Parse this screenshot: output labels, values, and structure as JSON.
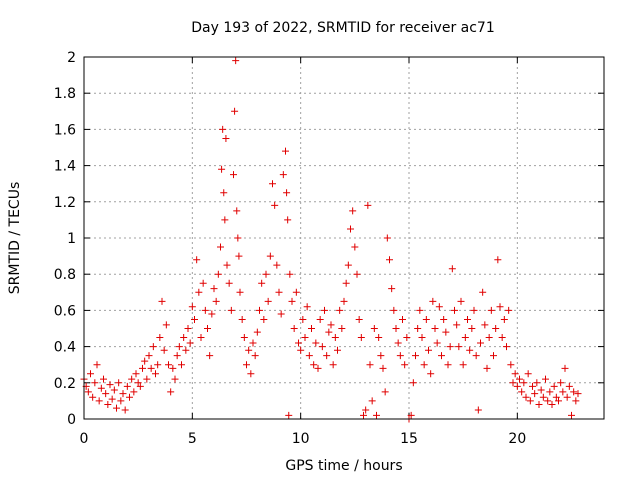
{
  "chart_data": {
    "type": "scatter",
    "title": "Day 193 of 2022, SRMTID for receiver ac71",
    "xlabel": "GPS time / hours",
    "ylabel": "SRMTID / TECUs",
    "xlim": [
      0,
      24
    ],
    "ylim": [
      0,
      2
    ],
    "xticks": [
      0,
      5,
      10,
      15,
      20
    ],
    "xtick_labels": [
      "0",
      "5",
      "10",
      "15",
      "20"
    ],
    "yticks": [
      0,
      0.2,
      0.4,
      0.6,
      0.8,
      1,
      1.2,
      1.4,
      1.6,
      1.8,
      2
    ],
    "ytick_labels": [
      "0",
      "0.2",
      "0.4",
      "0.6",
      "0.8",
      "1",
      "1.2",
      "1.4",
      "1.6",
      "1.8",
      "2"
    ],
    "grid": true,
    "marker": "+",
    "color": "#e00000",
    "series": [
      {
        "name": "SRMTID",
        "points": [
          [
            0.0,
            0.22
          ],
          [
            0.1,
            0.18
          ],
          [
            0.2,
            0.15
          ],
          [
            0.3,
            0.25
          ],
          [
            0.4,
            0.12
          ],
          [
            0.5,
            0.2
          ],
          [
            0.6,
            0.3
          ],
          [
            0.7,
            0.1
          ],
          [
            0.8,
            0.17
          ],
          [
            0.9,
            0.22
          ],
          [
            1.0,
            0.14
          ],
          [
            1.1,
            0.08
          ],
          [
            1.2,
            0.19
          ],
          [
            1.3,
            0.11
          ],
          [
            1.4,
            0.16
          ],
          [
            1.5,
            0.06
          ],
          [
            1.6,
            0.2
          ],
          [
            1.7,
            0.1
          ],
          [
            1.8,
            0.14
          ],
          [
            1.9,
            0.05
          ],
          [
            2.0,
            0.18
          ],
          [
            2.1,
            0.12
          ],
          [
            2.2,
            0.22
          ],
          [
            2.3,
            0.15
          ],
          [
            2.4,
            0.25
          ],
          [
            2.5,
            0.2
          ],
          [
            2.6,
            0.18
          ],
          [
            2.7,
            0.28
          ],
          [
            2.8,
            0.32
          ],
          [
            2.9,
            0.22
          ],
          [
            3.0,
            0.35
          ],
          [
            3.1,
            0.28
          ],
          [
            3.2,
            0.4
          ],
          [
            3.3,
            0.25
          ],
          [
            3.4,
            0.3
          ],
          [
            3.5,
            0.45
          ],
          [
            3.6,
            0.65
          ],
          [
            3.7,
            0.38
          ],
          [
            3.8,
            0.52
          ],
          [
            3.9,
            0.3
          ],
          [
            4.0,
            0.15
          ],
          [
            4.1,
            0.28
          ],
          [
            4.2,
            0.22
          ],
          [
            4.3,
            0.35
          ],
          [
            4.4,
            0.4
          ],
          [
            4.5,
            0.3
          ],
          [
            4.6,
            0.45
          ],
          [
            4.7,
            0.38
          ],
          [
            4.8,
            0.5
          ],
          [
            4.9,
            0.42
          ],
          [
            5.0,
            0.62
          ],
          [
            5.1,
            0.55
          ],
          [
            5.2,
            0.88
          ],
          [
            5.3,
            0.7
          ],
          [
            5.4,
            0.45
          ],
          [
            5.5,
            0.75
          ],
          [
            5.6,
            0.6
          ],
          [
            5.7,
            0.5
          ],
          [
            5.8,
            0.35
          ],
          [
            5.9,
            0.58
          ],
          [
            6.0,
            0.72
          ],
          [
            6.1,
            0.65
          ],
          [
            6.2,
            0.8
          ],
          [
            6.3,
            0.95
          ],
          [
            6.35,
            1.38
          ],
          [
            6.4,
            1.6
          ],
          [
            6.45,
            1.25
          ],
          [
            6.5,
            1.1
          ],
          [
            6.55,
            1.55
          ],
          [
            6.6,
            0.85
          ],
          [
            6.7,
            0.75
          ],
          [
            6.8,
            0.6
          ],
          [
            6.9,
            1.35
          ],
          [
            6.95,
            1.7
          ],
          [
            7.0,
            1.98
          ],
          [
            7.05,
            1.15
          ],
          [
            7.1,
            1.0
          ],
          [
            7.15,
            0.9
          ],
          [
            7.2,
            0.7
          ],
          [
            7.3,
            0.55
          ],
          [
            7.4,
            0.45
          ],
          [
            7.5,
            0.3
          ],
          [
            7.6,
            0.38
          ],
          [
            7.7,
            0.25
          ],
          [
            7.8,
            0.42
          ],
          [
            7.9,
            0.35
          ],
          [
            8.0,
            0.48
          ],
          [
            8.1,
            0.6
          ],
          [
            8.2,
            0.75
          ],
          [
            8.3,
            0.55
          ],
          [
            8.4,
            0.8
          ],
          [
            8.5,
            0.65
          ],
          [
            8.6,
            0.9
          ],
          [
            8.7,
            1.3
          ],
          [
            8.8,
            1.18
          ],
          [
            8.9,
            0.85
          ],
          [
            9.0,
            0.7
          ],
          [
            9.1,
            0.58
          ],
          [
            9.2,
            1.35
          ],
          [
            9.3,
            1.48
          ],
          [
            9.35,
            1.25
          ],
          [
            9.4,
            1.1
          ],
          [
            9.45,
            0.02
          ],
          [
            9.5,
            0.8
          ],
          [
            9.6,
            0.65
          ],
          [
            9.7,
            0.5
          ],
          [
            9.8,
            0.7
          ],
          [
            9.9,
            0.42
          ],
          [
            10.0,
            0.38
          ],
          [
            10.1,
            0.55
          ],
          [
            10.2,
            0.45
          ],
          [
            10.3,
            0.62
          ],
          [
            10.4,
            0.35
          ],
          [
            10.5,
            0.5
          ],
          [
            10.6,
            0.3
          ],
          [
            10.7,
            0.42
          ],
          [
            10.8,
            0.28
          ],
          [
            10.9,
            0.55
          ],
          [
            11.0,
            0.4
          ],
          [
            11.1,
            0.6
          ],
          [
            11.2,
            0.35
          ],
          [
            11.3,
            0.48
          ],
          [
            11.4,
            0.52
          ],
          [
            11.5,
            0.3
          ],
          [
            11.6,
            0.45
          ],
          [
            11.7,
            0.38
          ],
          [
            11.8,
            0.6
          ],
          [
            11.9,
            0.5
          ],
          [
            12.0,
            0.65
          ],
          [
            12.1,
            0.75
          ],
          [
            12.2,
            0.85
          ],
          [
            12.3,
            1.05
          ],
          [
            12.4,
            1.15
          ],
          [
            12.5,
            0.95
          ],
          [
            12.6,
            0.8
          ],
          [
            12.7,
            0.55
          ],
          [
            12.8,
            0.45
          ],
          [
            12.9,
            0.02
          ],
          [
            13.0,
            0.05
          ],
          [
            13.1,
            1.18
          ],
          [
            13.2,
            0.3
          ],
          [
            13.3,
            0.1
          ],
          [
            13.4,
            0.5
          ],
          [
            13.5,
            0.02
          ],
          [
            13.6,
            0.45
          ],
          [
            13.7,
            0.35
          ],
          [
            13.8,
            0.28
          ],
          [
            13.9,
            0.15
          ],
          [
            14.0,
            1.0
          ],
          [
            14.1,
            0.88
          ],
          [
            14.2,
            0.72
          ],
          [
            14.3,
            0.6
          ],
          [
            14.4,
            0.5
          ],
          [
            14.5,
            0.42
          ],
          [
            14.6,
            0.35
          ],
          [
            14.7,
            0.55
          ],
          [
            14.8,
            0.3
          ],
          [
            14.9,
            0.45
          ],
          [
            15.0,
            0.0
          ],
          [
            15.1,
            0.02
          ],
          [
            15.2,
            0.2
          ],
          [
            15.3,
            0.35
          ],
          [
            15.4,
            0.5
          ],
          [
            15.5,
            0.6
          ],
          [
            15.6,
            0.45
          ],
          [
            15.7,
            0.3
          ],
          [
            15.8,
            0.55
          ],
          [
            15.9,
            0.38
          ],
          [
            16.0,
            0.25
          ],
          [
            16.1,
            0.65
          ],
          [
            16.2,
            0.5
          ],
          [
            16.3,
            0.42
          ],
          [
            16.4,
            0.62
          ],
          [
            16.5,
            0.35
          ],
          [
            16.6,
            0.55
          ],
          [
            16.7,
            0.48
          ],
          [
            16.8,
            0.3
          ],
          [
            16.9,
            0.4
          ],
          [
            17.0,
            0.83
          ],
          [
            17.1,
            0.6
          ],
          [
            17.2,
            0.52
          ],
          [
            17.3,
            0.4
          ],
          [
            17.4,
            0.65
          ],
          [
            17.5,
            0.3
          ],
          [
            17.6,
            0.45
          ],
          [
            17.7,
            0.55
          ],
          [
            17.8,
            0.38
          ],
          [
            17.9,
            0.5
          ],
          [
            18.0,
            0.6
          ],
          [
            18.1,
            0.35
          ],
          [
            18.2,
            0.05
          ],
          [
            18.3,
            0.42
          ],
          [
            18.4,
            0.7
          ],
          [
            18.5,
            0.52
          ],
          [
            18.6,
            0.28
          ],
          [
            18.7,
            0.45
          ],
          [
            18.8,
            0.6
          ],
          [
            18.9,
            0.35
          ],
          [
            19.0,
            0.5
          ],
          [
            19.1,
            0.88
          ],
          [
            19.2,
            0.62
          ],
          [
            19.3,
            0.45
          ],
          [
            19.4,
            0.55
          ],
          [
            19.5,
            0.4
          ],
          [
            19.6,
            0.6
          ],
          [
            19.7,
            0.3
          ],
          [
            19.8,
            0.2
          ],
          [
            19.9,
            0.25
          ],
          [
            20.0,
            0.18
          ],
          [
            20.1,
            0.22
          ],
          [
            20.2,
            0.15
          ],
          [
            20.3,
            0.2
          ],
          [
            20.4,
            0.12
          ],
          [
            20.5,
            0.25
          ],
          [
            20.6,
            0.1
          ],
          [
            20.7,
            0.18
          ],
          [
            20.8,
            0.14
          ],
          [
            20.9,
            0.2
          ],
          [
            21.0,
            0.08
          ],
          [
            21.1,
            0.16
          ],
          [
            21.2,
            0.12
          ],
          [
            21.3,
            0.22
          ],
          [
            21.4,
            0.1
          ],
          [
            21.5,
            0.15
          ],
          [
            21.6,
            0.08
          ],
          [
            21.7,
            0.18
          ],
          [
            21.8,
            0.12
          ],
          [
            21.9,
            0.1
          ],
          [
            22.0,
            0.2
          ],
          [
            22.1,
            0.15
          ],
          [
            22.2,
            0.28
          ],
          [
            22.3,
            0.12
          ],
          [
            22.4,
            0.18
          ],
          [
            22.5,
            0.02
          ],
          [
            22.6,
            0.15
          ],
          [
            22.7,
            0.1
          ],
          [
            22.8,
            0.14
          ]
        ]
      }
    ]
  }
}
